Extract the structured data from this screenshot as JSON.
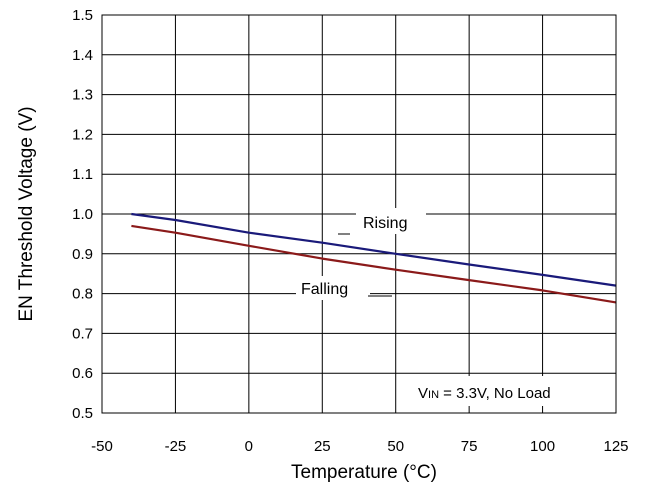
{
  "chart_data": {
    "type": "line",
    "xlabel": "Temperature (°C)",
    "ylabel": "EN Threshold Voltage (V)",
    "xlim": [
      -50,
      125
    ],
    "ylim": [
      0.5,
      1.5
    ],
    "x_ticks": [
      "-50",
      "-25",
      "0",
      "25",
      "50",
      "75",
      "100",
      "125"
    ],
    "y_ticks": [
      "0.5",
      "0.6",
      "0.7",
      "0.8",
      "0.9",
      "1.0",
      "1.1",
      "1.2",
      "1.3",
      "1.4",
      "1.5"
    ],
    "grid": true,
    "series": [
      {
        "name": "Rising",
        "color": "#1a1a7a",
        "x": [
          -40,
          -25,
          0,
          25,
          50,
          75,
          100,
          125
        ],
        "y": [
          1.0,
          0.985,
          0.953,
          0.928,
          0.9,
          0.873,
          0.847,
          0.82
        ]
      },
      {
        "name": "Falling",
        "color": "#8b1a1a",
        "x": [
          -40,
          -25,
          0,
          25,
          50,
          75,
          100,
          125
        ],
        "y": [
          0.97,
          0.953,
          0.92,
          0.888,
          0.86,
          0.834,
          0.808,
          0.778
        ]
      }
    ],
    "condition": {
      "prefix": "V",
      "subscript": "IN",
      "suffix": " = 3.3V, No Load"
    }
  }
}
